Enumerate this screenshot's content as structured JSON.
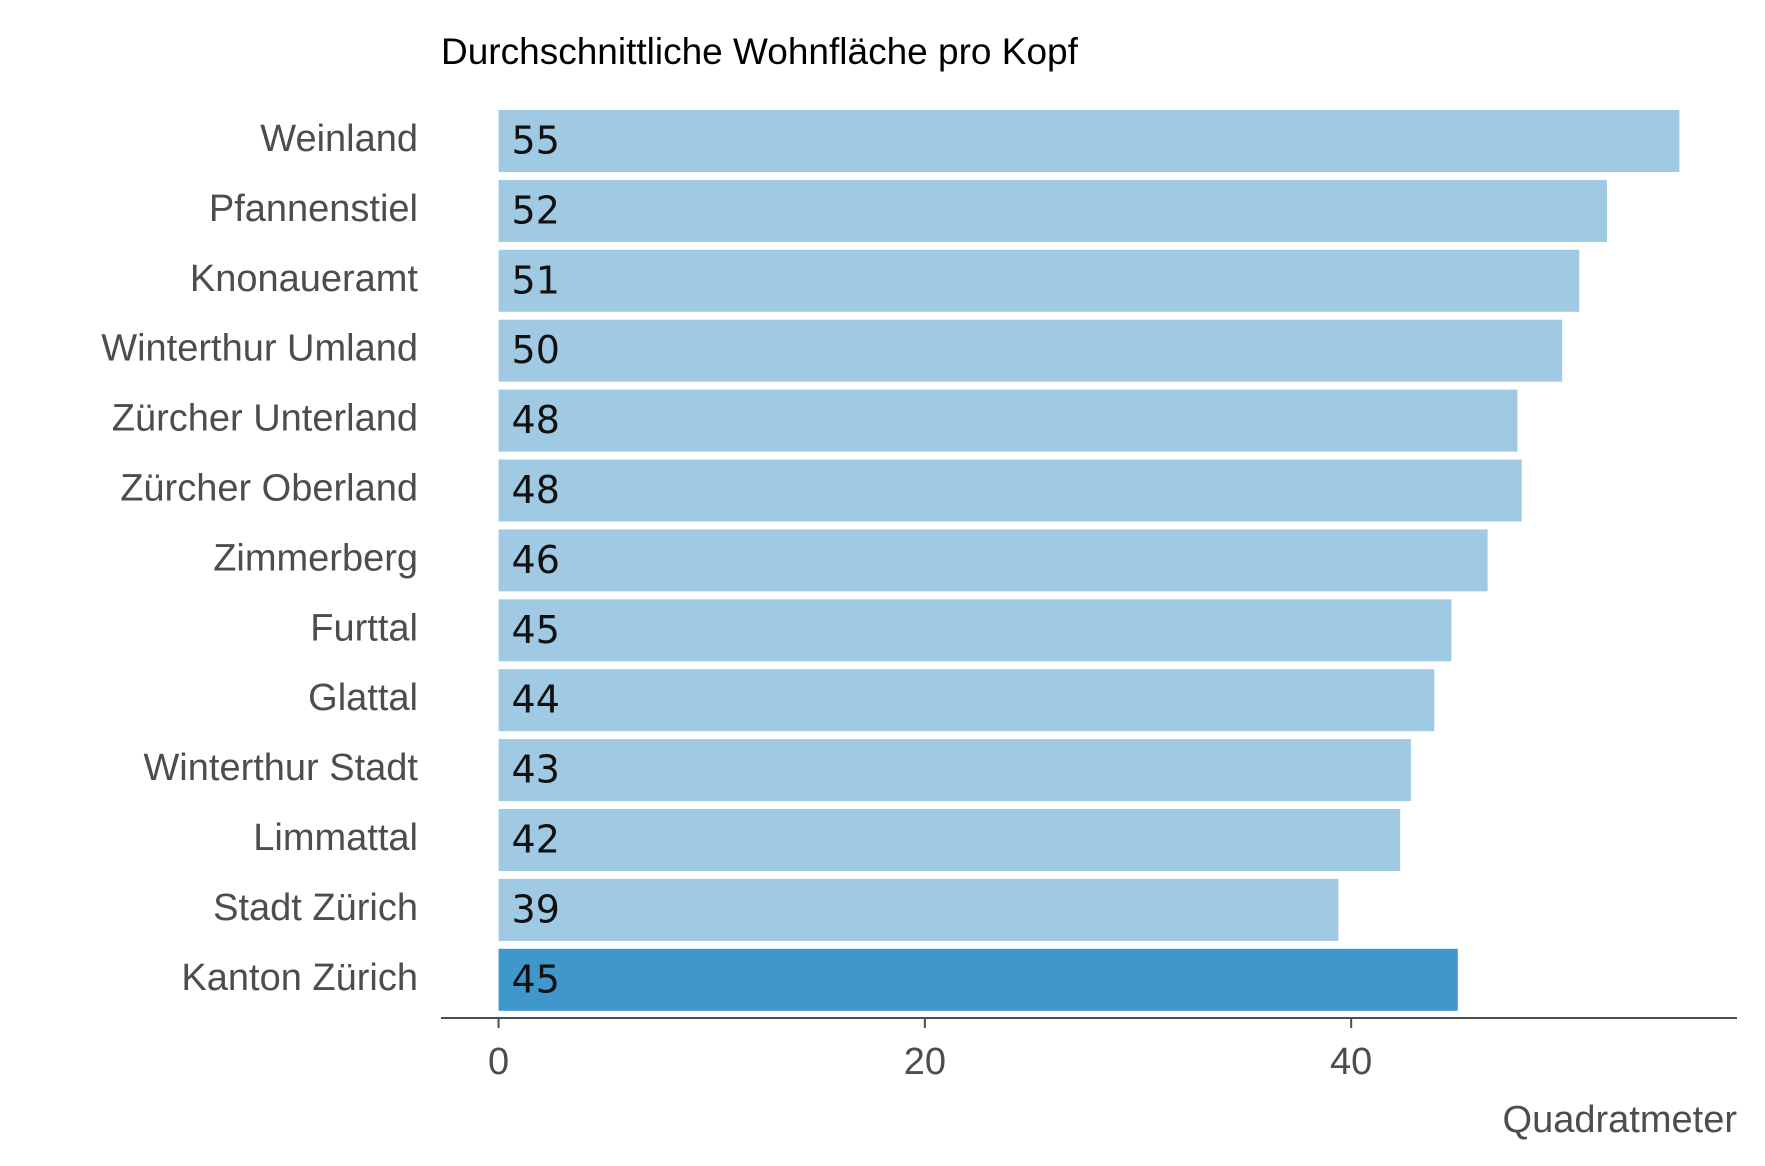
{
  "chart_data": {
    "type": "barh",
    "title": "Durchschnittliche Wohnfläche pro Kopf",
    "x_label": "Quadratmeter",
    "categories": [
      "Weinland",
      "Pfannenstiel",
      "Knonaueramt",
      "Winterthur Umland",
      "Zürcher Unterland",
      "Zürcher Oberland",
      "Zimmerberg",
      "Furttal",
      "Glattal",
      "Winterthur Stadt",
      "Limmattal",
      "Stadt Zürich",
      "Kanton Zürich"
    ],
    "values": [
      55.4,
      52.0,
      50.7,
      49.9,
      47.8,
      48.0,
      46.4,
      44.7,
      43.9,
      42.8,
      42.3,
      39.4,
      45.0
    ],
    "value_labels": [
      "55",
      "52",
      "51",
      "50",
      "48",
      "48",
      "46",
      "45",
      "44",
      "43",
      "42",
      "39",
      "45"
    ],
    "colors": [
      "#a0cae3",
      "#a0cae3",
      "#a0cae3",
      "#a0cae3",
      "#a0cae3",
      "#a0cae3",
      "#a0cae3",
      "#a0cae3",
      "#a0cae3",
      "#a0cae3",
      "#a0cae3",
      "#a0cae3",
      "#3f97cc"
    ],
    "xlim": [
      -2.7,
      58.1
    ],
    "xticks": [
      0,
      20,
      40
    ],
    "grid": false
  }
}
